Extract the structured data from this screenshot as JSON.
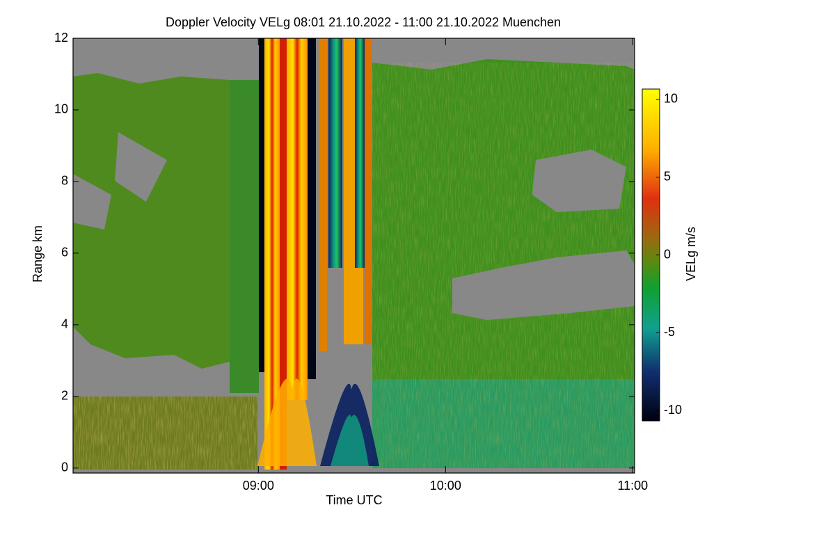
{
  "chart_data": {
    "type": "heatmap",
    "title": "Doppler Velocity VELg   08:01 21.10.2022 - 11:00 21.10.2022 Muenchen",
    "x_label": "Time UTC",
    "y_label": "Range km",
    "colorbar_label": "VELg m/s",
    "xlim": [
      8.01,
      11.01
    ],
    "xticks": [
      {
        "value": 9,
        "label": "09:00"
      },
      {
        "value": 10,
        "label": "10:00"
      },
      {
        "value": 11,
        "label": "11:00"
      }
    ],
    "ylim": [
      -0.14,
      12
    ],
    "yticks": [
      0,
      2,
      4,
      6,
      8,
      10,
      12
    ],
    "zlim": [
      -10.67,
      10.67
    ],
    "zticks": [
      10,
      5,
      0,
      -5,
      -10
    ]
  }
}
